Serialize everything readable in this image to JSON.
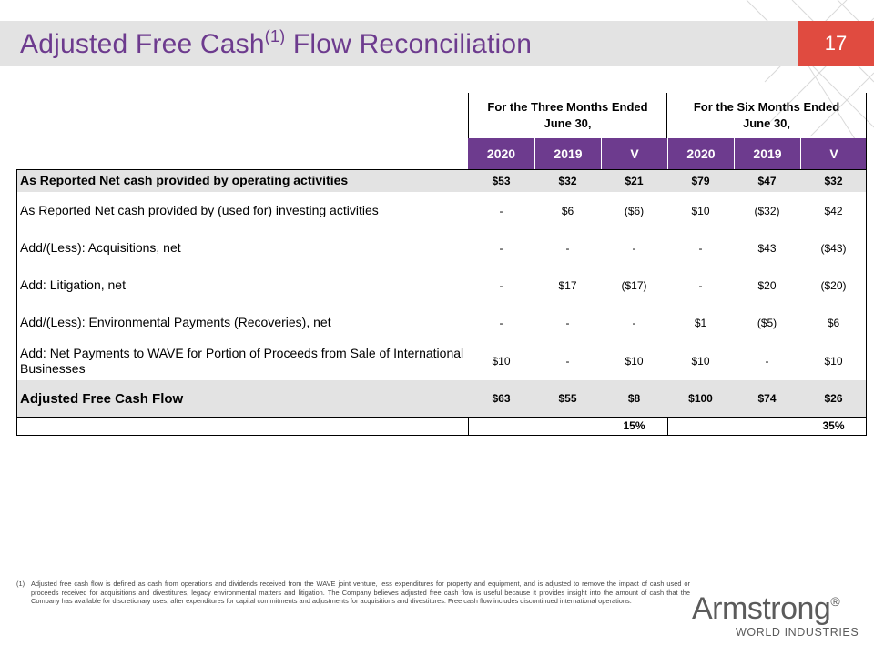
{
  "slide": {
    "title": "Adjusted Free Cash",
    "title_sup": "(1)",
    "title_tail": " Flow Reconciliation",
    "page_number": "17"
  },
  "table": {
    "group_headers": [
      {
        "line1": "For the Three Months Ended",
        "line2": "June 30,"
      },
      {
        "line1": "For the Six Months Ended",
        "line2": "June 30,"
      }
    ],
    "columns": [
      "2020",
      "2019",
      "V",
      "2020",
      "2019",
      "V"
    ],
    "rows": [
      {
        "label": "As Reported Net cash provided by operating activities",
        "values": [
          "$53",
          "$32",
          "$21",
          "$79",
          "$47",
          "$32"
        ]
      },
      {
        "label": "As Reported Net cash provided by (used for) investing activities",
        "values": [
          "-",
          "$6",
          "($6)",
          "$10",
          "($32)",
          "$42"
        ]
      },
      {
        "label": "Add/(Less): Acquisitions, net",
        "values": [
          "-",
          "-",
          "-",
          "-",
          "$43",
          "($43)"
        ]
      },
      {
        "label": "Add: Litigation, net",
        "values": [
          "-",
          "$17",
          "($17)",
          "-",
          "$20",
          "($20)"
        ]
      },
      {
        "label": "Add/(Less): Environmental Payments (Recoveries), net",
        "values": [
          "-",
          "-",
          "-",
          "$1",
          "($5)",
          "$6"
        ]
      },
      {
        "label": "Add: Net Payments to WAVE for Portion of Proceeds from Sale of International Businesses",
        "values": [
          "$10",
          "-",
          "$10",
          "$10",
          "-",
          "$10"
        ]
      },
      {
        "label": "Adjusted Free Cash Flow",
        "values": [
          "$63",
          "$55",
          "$8",
          "$100",
          "$74",
          "$26"
        ]
      }
    ],
    "pct_row": {
      "three_months": "15%",
      "six_months": "35%"
    }
  },
  "footnote": {
    "number": "(1)",
    "text": "Adjusted free cash flow is defined as cash from operations and dividends received from the WAVE joint venture, less expenditures for property and equipment, and is adjusted to remove the impact of cash used or proceeds received for acquisitions and divestitures, legacy environmental matters and litigation. The Company believes adjusted free cash flow is useful because it provides insight into the amount of cash that the Company has available for discretionary uses, after expenditures for capital commitments and adjustments for acquisitions and divestitures.  Free cash flow includes discontinued international operations."
  },
  "logo": {
    "name": "Armstrong",
    "reg": "®",
    "tagline": "WORLD INDUSTRIES"
  },
  "colors": {
    "accent_purple": "#6d3b8e",
    "accent_red": "#e04b40",
    "band_gray": "#e3e3e3"
  }
}
